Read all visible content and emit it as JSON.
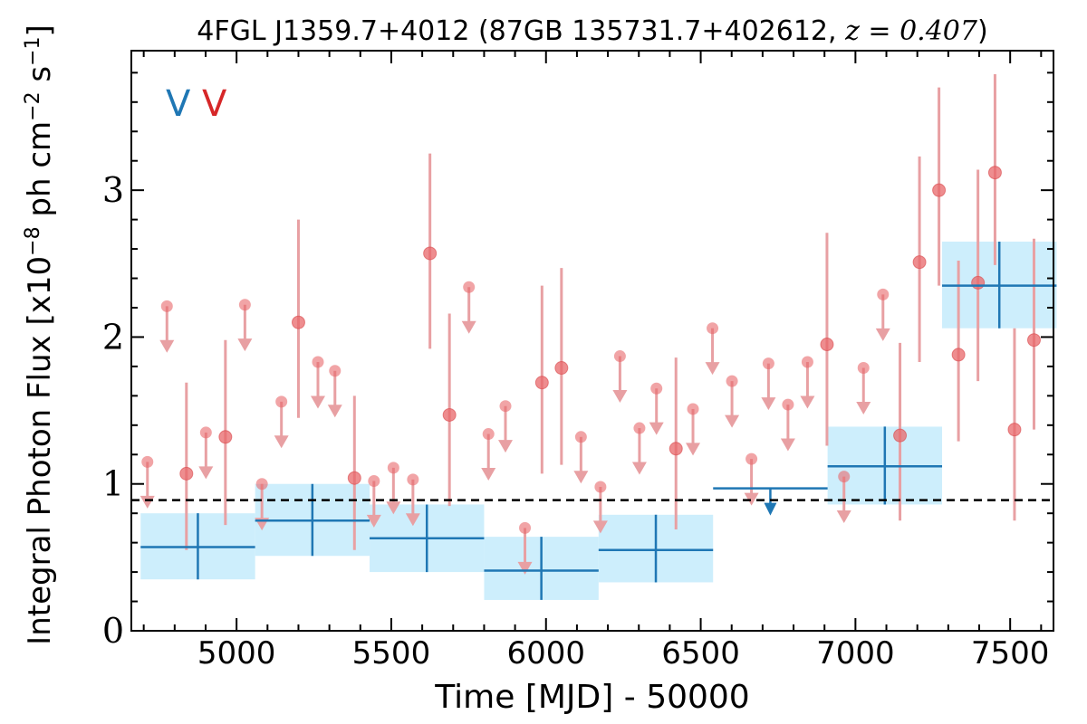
{
  "chart_data": {
    "type": "scatter",
    "title": {
      "prefix": "4FGL J1359.7+4012 (87GB 135731.7+402612, ",
      "math": "z = 0.407",
      "suffix": ")"
    },
    "xlabel": "Time [MJD] - 50000",
    "ylabel": {
      "main": "Integral Photon Flux [x10",
      "exp1": "−8",
      "mid": " ph cm",
      "exp2": "−2",
      "end": " s",
      "exp3": "−1",
      "close": "]"
    },
    "xlim": [
      4660,
      7640
    ],
    "ylim": [
      0,
      3.95
    ],
    "xticks": [
      5000,
      5500,
      6000,
      6500,
      7000,
      7500
    ],
    "yticks": [
      0,
      1,
      2,
      3
    ],
    "legend_marks": [
      {
        "text": "V",
        "color": "#1f77b4"
      },
      {
        "text": "V",
        "color": "#d62728"
      }
    ],
    "mean_flux": 0.89,
    "colors": {
      "fine_marker": "#e8676a",
      "fine_errorbar": "#e8a0a3",
      "coarse": "#1f77b4",
      "coarse_box": "#cdeefc",
      "mean_line": "#000000"
    },
    "fine_series": [
      {
        "x": 4712,
        "y": 1.15,
        "ul": true
      },
      {
        "x": 4775,
        "y": 2.21,
        "ul": true
      },
      {
        "x": 4838,
        "y": 1.07,
        "lo": 0.55,
        "hi": 1.69
      },
      {
        "x": 4901,
        "y": 1.35,
        "ul": true
      },
      {
        "x": 4964,
        "y": 1.32,
        "lo": 0.72,
        "hi": 1.98
      },
      {
        "x": 5027,
        "y": 2.22,
        "ul": true
      },
      {
        "x": 5082,
        "y": 1.0,
        "ul": true
      },
      {
        "x": 5145,
        "y": 1.56,
        "ul": true
      },
      {
        "x": 5200,
        "y": 2.1,
        "lo": 1.45,
        "hi": 2.8
      },
      {
        "x": 5263,
        "y": 1.83,
        "ul": true
      },
      {
        "x": 5318,
        "y": 1.77,
        "ul": true
      },
      {
        "x": 5381,
        "y": 1.04,
        "lo": 0.55,
        "hi": 1.6
      },
      {
        "x": 5444,
        "y": 1.02,
        "ul": true
      },
      {
        "x": 5507,
        "y": 1.11,
        "ul": true
      },
      {
        "x": 5570,
        "y": 1.03,
        "ul": true
      },
      {
        "x": 5625,
        "y": 2.57,
        "lo": 1.92,
        "hi": 3.25
      },
      {
        "x": 5688,
        "y": 1.47,
        "lo": 0.85,
        "hi": 2.16
      },
      {
        "x": 5751,
        "y": 2.34,
        "ul": true
      },
      {
        "x": 5814,
        "y": 1.34,
        "ul": true
      },
      {
        "x": 5869,
        "y": 1.53,
        "ul": true
      },
      {
        "x": 5932,
        "y": 0.7,
        "ul": true
      },
      {
        "x": 5987,
        "y": 1.69,
        "lo": 1.07,
        "hi": 2.35
      },
      {
        "x": 6050,
        "y": 1.79,
        "lo": 1.13,
        "hi": 2.47
      },
      {
        "x": 6113,
        "y": 1.32,
        "ul": true
      },
      {
        "x": 6176,
        "y": 0.98,
        "ul": true
      },
      {
        "x": 6239,
        "y": 1.87,
        "ul": true
      },
      {
        "x": 6302,
        "y": 1.38,
        "ul": true
      },
      {
        "x": 6357,
        "y": 1.65,
        "ul": true
      },
      {
        "x": 6420,
        "y": 1.24,
        "lo": 0.69,
        "hi": 1.86
      },
      {
        "x": 6475,
        "y": 1.51,
        "ul": true
      },
      {
        "x": 6538,
        "y": 2.06,
        "ul": true
      },
      {
        "x": 6601,
        "y": 1.7,
        "ul": true
      },
      {
        "x": 6664,
        "y": 1.17,
        "ul": true
      },
      {
        "x": 6719,
        "y": 1.82,
        "ul": true
      },
      {
        "x": 6782,
        "y": 1.54,
        "ul": true
      },
      {
        "x": 6845,
        "y": 1.83,
        "ul": true
      },
      {
        "x": 6908,
        "y": 1.95,
        "lo": 1.26,
        "hi": 2.71
      },
      {
        "x": 6963,
        "y": 1.05,
        "ul": true
      },
      {
        "x": 7026,
        "y": 1.79,
        "ul": true
      },
      {
        "x": 7089,
        "y": 2.29,
        "ul": true
      },
      {
        "x": 7144,
        "y": 1.33,
        "lo": 0.75,
        "hi": 1.96
      },
      {
        "x": 7207,
        "y": 2.51,
        "lo": 1.83,
        "hi": 3.23
      },
      {
        "x": 7270,
        "y": 3.0,
        "lo": 2.35,
        "hi": 3.7
      },
      {
        "x": 7333,
        "y": 1.88,
        "lo": 1.29,
        "hi": 2.52
      },
      {
        "x": 7396,
        "y": 2.37,
        "lo": 1.7,
        "hi": 3.14
      },
      {
        "x": 7451,
        "y": 3.12,
        "lo": 2.49,
        "hi": 3.79
      },
      {
        "x": 7514,
        "y": 1.37,
        "lo": 0.75,
        "hi": 2.06
      },
      {
        "x": 7577,
        "y": 1.98,
        "lo": 1.37,
        "hi": 2.67
      }
    ],
    "coarse_series": [
      {
        "x0": 4690,
        "x1": 5060,
        "y": 0.57,
        "lo": 0.35,
        "hi": 0.8,
        "bandLo": 0.35,
        "bandHi": 0.8
      },
      {
        "x0": 5060,
        "x1": 5430,
        "y": 0.75,
        "lo": 0.51,
        "hi": 1.0,
        "bandLo": 0.51,
        "bandHi": 1.0
      },
      {
        "x0": 5430,
        "x1": 5800,
        "y": 0.63,
        "lo": 0.4,
        "hi": 0.86,
        "bandLo": 0.4,
        "bandHi": 0.86
      },
      {
        "x0": 5800,
        "x1": 6170,
        "y": 0.41,
        "lo": 0.21,
        "hi": 0.64,
        "bandLo": 0.21,
        "bandHi": 0.64
      },
      {
        "x0": 6170,
        "x1": 6540,
        "y": 0.55,
        "lo": 0.33,
        "hi": 0.79,
        "bandLo": 0.33,
        "bandHi": 0.79
      },
      {
        "x0": 6540,
        "x1": 6910,
        "y": 0.97,
        "ul": true
      },
      {
        "x0": 6910,
        "x1": 7280,
        "y": 1.12,
        "lo": 0.86,
        "hi": 1.39,
        "bandLo": 0.86,
        "bandHi": 1.39
      },
      {
        "x0": 7280,
        "x1": 7650,
        "y": 2.35,
        "lo": 2.06,
        "hi": 2.65,
        "bandLo": 2.06,
        "bandHi": 2.65
      }
    ]
  }
}
